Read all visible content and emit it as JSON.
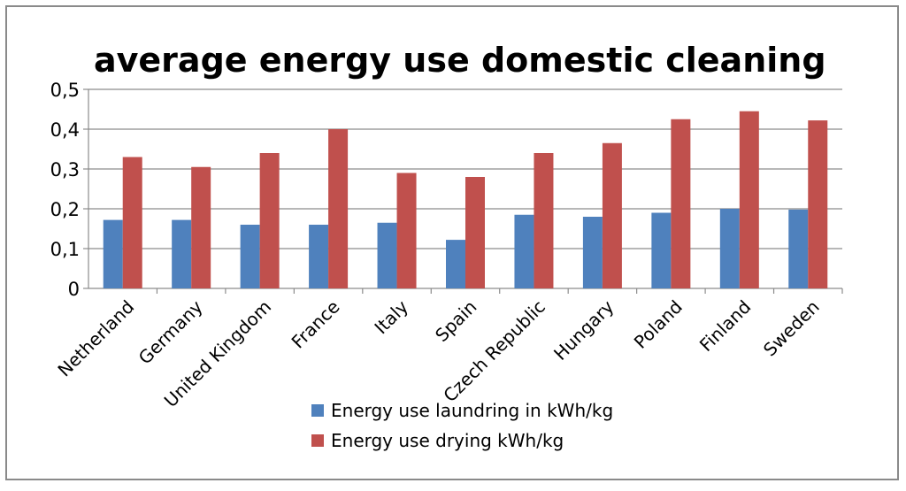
{
  "chart_data": {
    "type": "bar",
    "title": "average energy use domestic cleaning",
    "categories": [
      "Netherland",
      "Germany",
      "United Kingdom",
      "France",
      "Italy",
      "Spain",
      "Czech Republic",
      "Hungary",
      "Poland",
      "Finland",
      "Sweden"
    ],
    "series": [
      {
        "name": "Energy use laundring in kWh/kg",
        "color": "#4f81bd",
        "values": [
          0.172,
          0.172,
          0.16,
          0.16,
          0.165,
          0.122,
          0.185,
          0.18,
          0.19,
          0.2,
          0.198
        ]
      },
      {
        "name": "Energy use drying kWh/kg",
        "color": "#c0504d",
        "values": [
          0.33,
          0.305,
          0.34,
          0.4,
          0.29,
          0.28,
          0.34,
          0.365,
          0.425,
          0.445,
          0.422
        ]
      }
    ],
    "ylim": [
      0,
      0.5
    ],
    "yticks": [
      "0",
      "0,1",
      "0,2",
      "0,3",
      "0,4",
      "0,5"
    ],
    "grid": true,
    "legend": "bottom"
  }
}
